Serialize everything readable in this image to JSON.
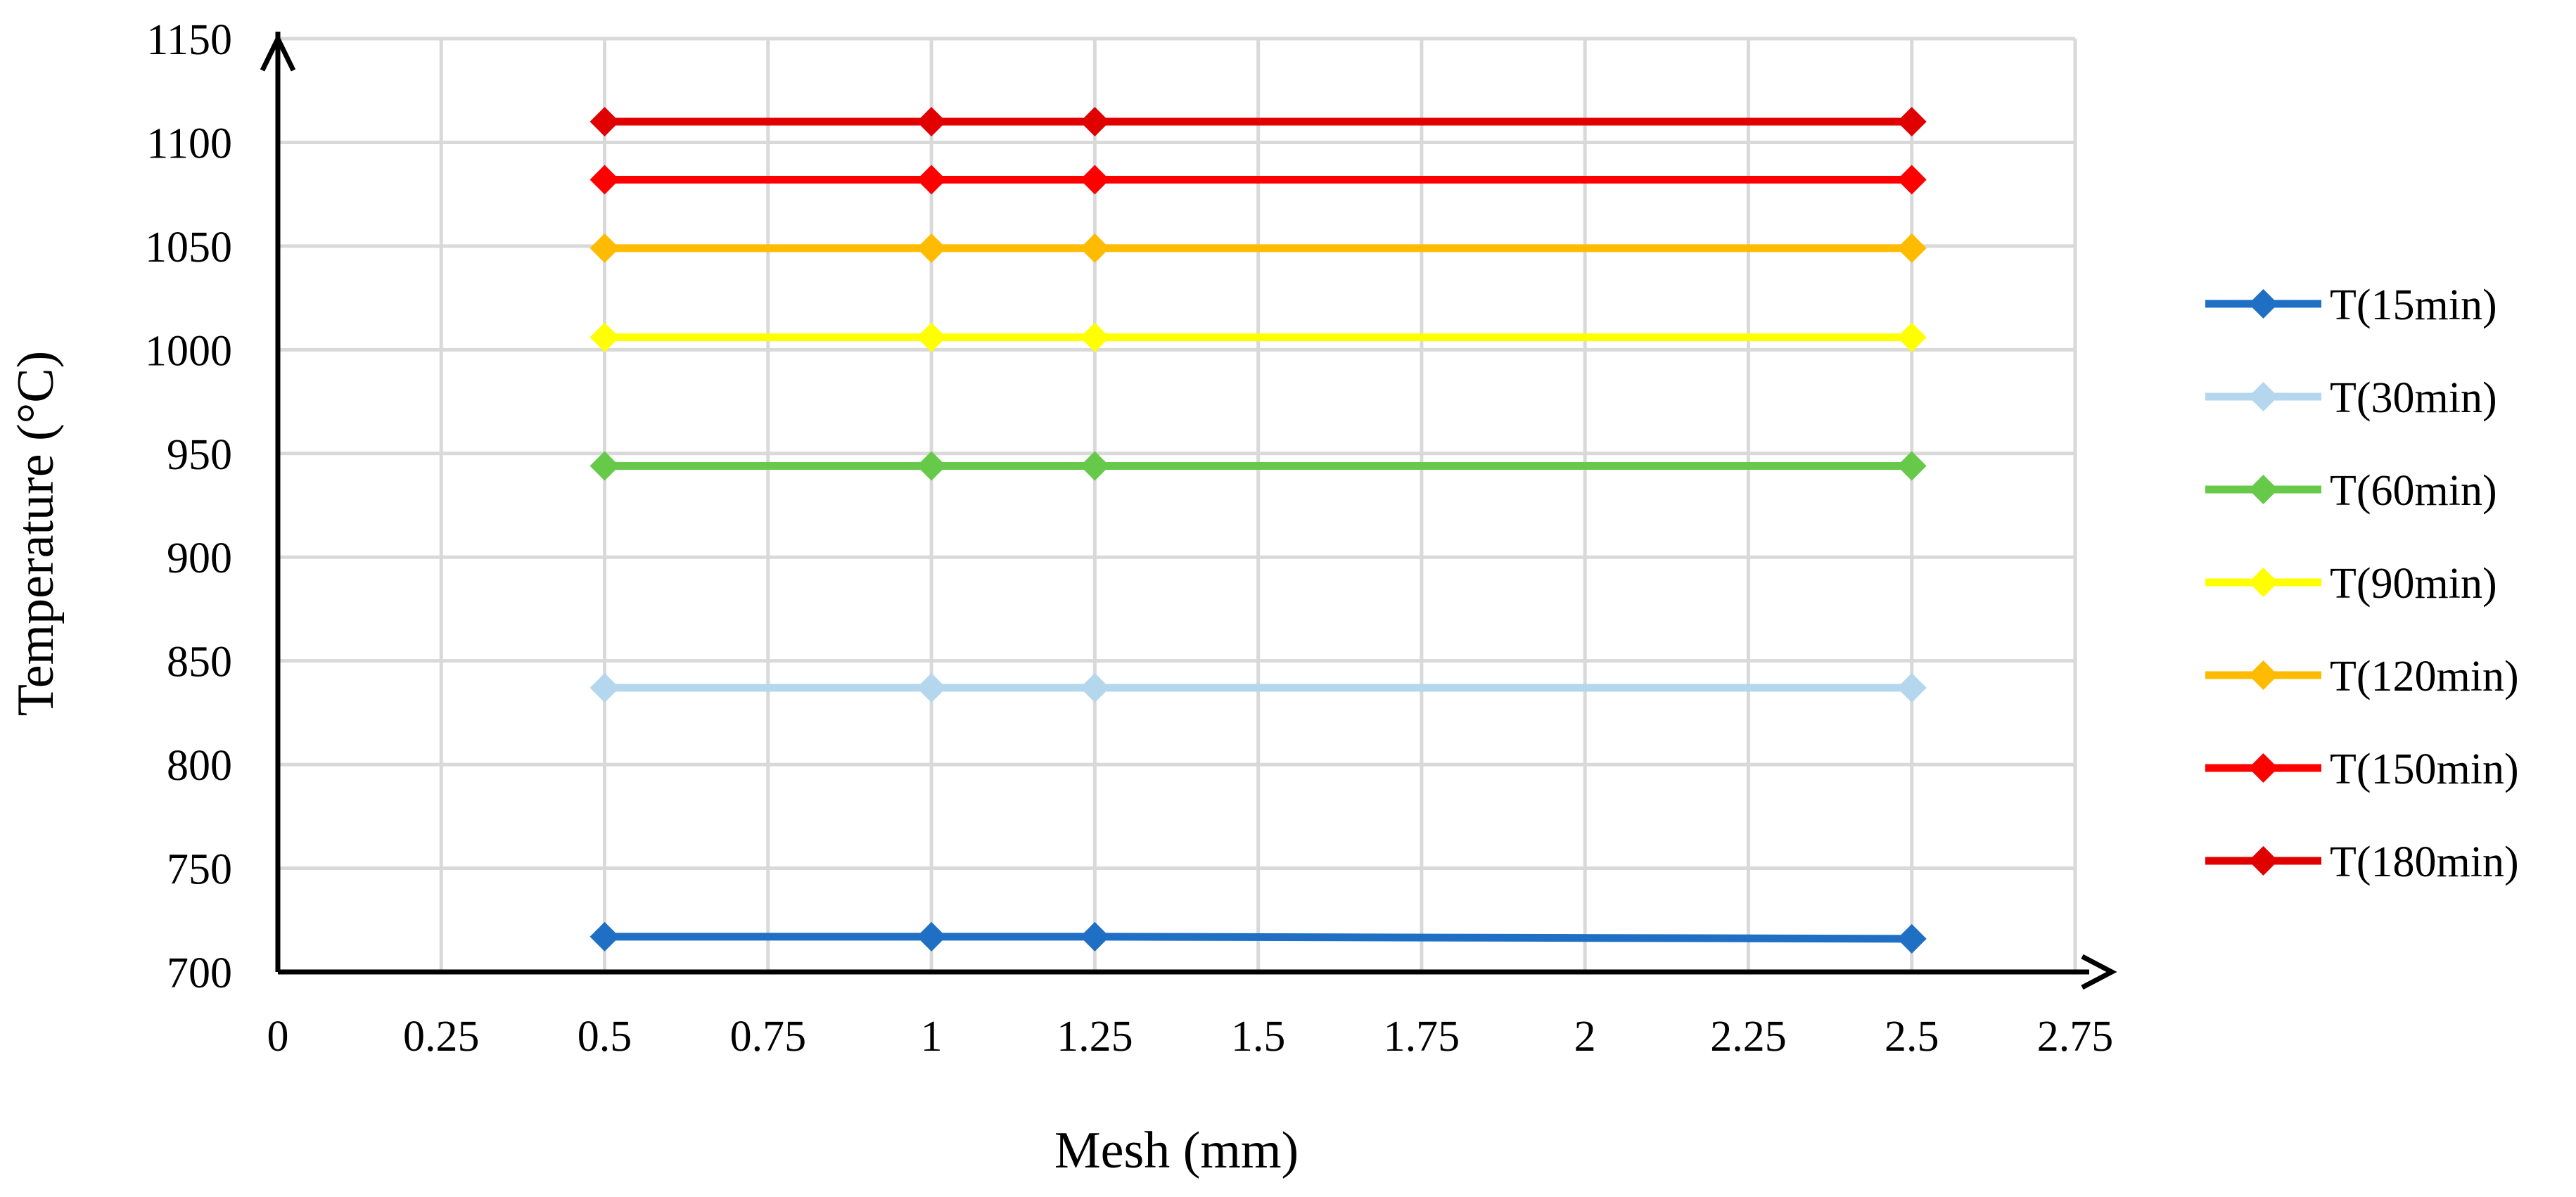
{
  "chart_data": {
    "type": "line",
    "title": "",
    "xlabel": "Mesh (mm)",
    "ylabel": "Temperature (°C)",
    "xlim": [
      0,
      2.75
    ],
    "ylim": [
      700,
      1150
    ],
    "x_ticks": [
      0,
      0.25,
      0.5,
      0.75,
      1,
      1.25,
      1.5,
      1.75,
      2,
      2.25,
      2.5,
      2.75
    ],
    "y_ticks": [
      700,
      750,
      800,
      850,
      900,
      950,
      1000,
      1050,
      1100,
      1150
    ],
    "x_tick_labels": [
      "0",
      "0.25",
      "0.5",
      "0.75",
      "1",
      "1.25",
      "1.5",
      "1.75",
      "2",
      "2.25",
      "2.5",
      "2.75"
    ],
    "y_tick_labels": [
      "700",
      "750",
      "800",
      "850",
      "900",
      "950",
      "1000",
      "1050",
      "1100",
      "1150"
    ],
    "grid": true,
    "legend_position": "right",
    "marker": "diamond",
    "x": [
      0.5,
      1,
      1.25,
      2.5
    ],
    "series": [
      {
        "name": "T(15min)",
        "color": "#1f6fc5",
        "values": [
          717,
          717,
          717,
          716
        ]
      },
      {
        "name": "T(30min)",
        "color": "#b4d7ee",
        "values": [
          837,
          837,
          837,
          837
        ]
      },
      {
        "name": "T(60min)",
        "color": "#67c94a",
        "values": [
          944,
          944,
          944,
          944
        ]
      },
      {
        "name": "T(90min)",
        "color": "#ffff00",
        "values": [
          1006,
          1006,
          1006,
          1006
        ]
      },
      {
        "name": "T(120min)",
        "color": "#ffbb00",
        "values": [
          1049,
          1049,
          1049,
          1049
        ]
      },
      {
        "name": "T(150min)",
        "color": "#ff0000",
        "values": [
          1082,
          1082,
          1082,
          1082
        ]
      },
      {
        "name": "T(180min)",
        "color": "#e00000",
        "values": [
          1110,
          1110,
          1110,
          1110
        ]
      }
    ]
  }
}
